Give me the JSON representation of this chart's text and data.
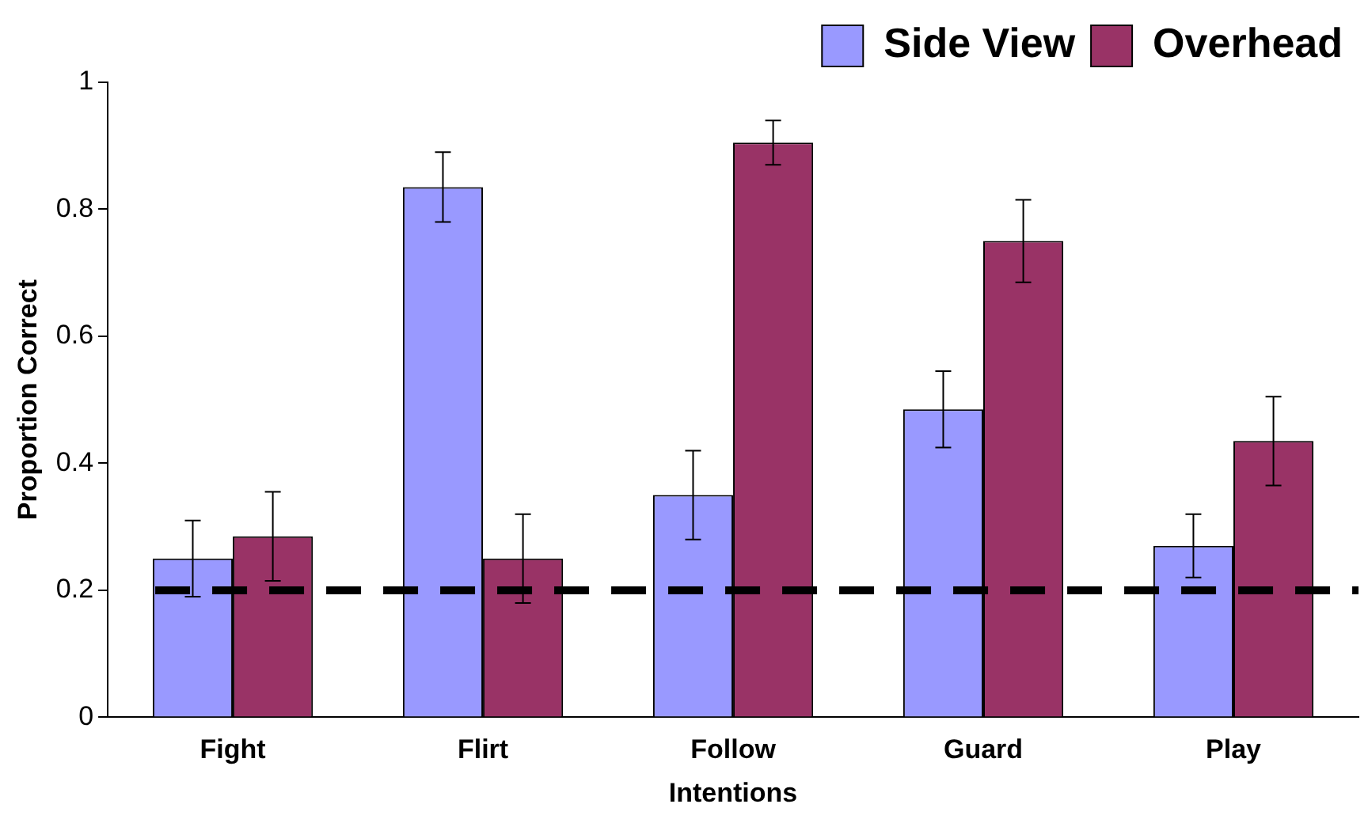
{
  "chart_data": {
    "type": "bar",
    "xlabel": "Intentions",
    "ylabel": "Proportion Correct",
    "categories": [
      "Fight",
      "Flirt",
      "Follow",
      "Guard",
      "Play"
    ],
    "series": [
      {
        "name": "Side View",
        "color": "#9999ff",
        "values": [
          0.25,
          0.835,
          0.35,
          0.485,
          0.27
        ],
        "errors": [
          0.06,
          0.055,
          0.07,
          0.06,
          0.05
        ]
      },
      {
        "name": "Overhead",
        "color": "#993366",
        "values": [
          0.285,
          0.25,
          0.905,
          0.75,
          0.435
        ],
        "errors": [
          0.07,
          0.07,
          0.035,
          0.065,
          0.07
        ]
      }
    ],
    "ylim": [
      0,
      1
    ],
    "yticks": [
      0,
      0.2,
      0.4,
      0.6,
      0.8,
      1
    ],
    "grid": false,
    "legend": "top right",
    "ref_lines": [
      {
        "axis": "y",
        "value": 0.2,
        "color": "#000000",
        "line_style": "dashed"
      }
    ]
  }
}
